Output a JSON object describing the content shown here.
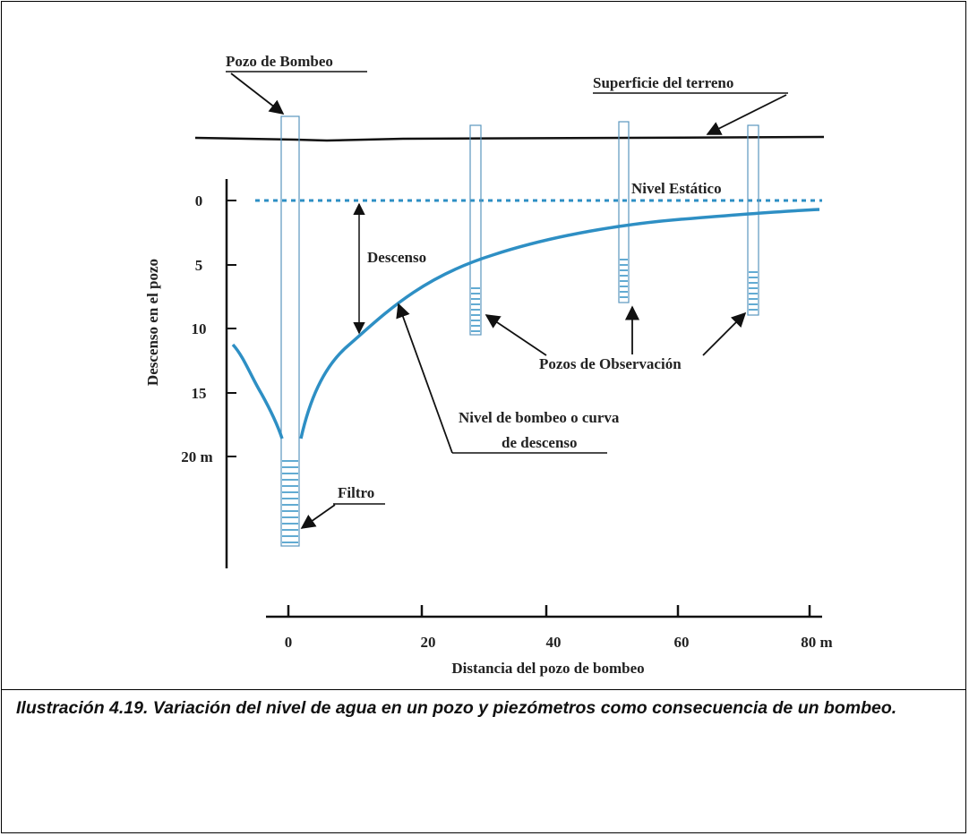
{
  "diagram": {
    "labels": {
      "pumping_well": "Pozo de Bombeo",
      "ground_surface": "Superficie del terreno",
      "static_level": "Nivel Estático",
      "drawdown": "Descenso",
      "observation_wells": "Pozos de Observación",
      "pumping_level_line1": "Nivel de bombeo o curva",
      "pumping_level_line2": "de descenso",
      "filter": "Filtro"
    },
    "y_axis": {
      "title": "Descenso en el pozo",
      "ticks": [
        "0",
        "5",
        "10",
        "15",
        "20 m"
      ]
    },
    "x_axis": {
      "title": "Distancia del pozo de bombeo",
      "ticks": [
        "0",
        "20",
        "40",
        "60",
        "80 m"
      ]
    },
    "colors": {
      "water": "#2e8fc4",
      "line": "#111111"
    }
  },
  "caption": {
    "text": "Ilustración 4.19.  Variación del nivel de agua en un pozo y piezómetros como consecuencia de un bombeo."
  }
}
